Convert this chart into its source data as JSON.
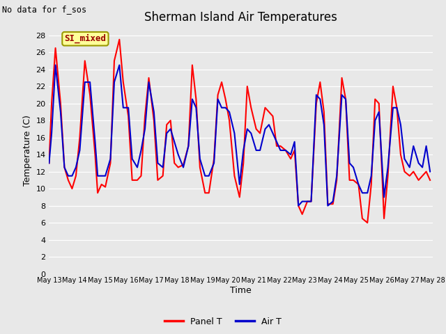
{
  "title": "Sherman Island Air Temperatures",
  "no_data_text": "No data for f_sos",
  "xlabel": "Time",
  "ylabel": "Temperature (C)",
  "ylim": [
    0,
    29
  ],
  "yticks": [
    0,
    2,
    4,
    6,
    8,
    10,
    12,
    14,
    16,
    18,
    20,
    22,
    24,
    26,
    28
  ],
  "background_color": "#e8e8e8",
  "plot_bg_color": "#e8e8e8",
  "legend_label_panel": "Panel T",
  "legend_label_air": "Air T",
  "legend_box_label": "SI_mixed",
  "legend_box_color": "#ffff99",
  "legend_box_border": "#999900",
  "panel_color": "#ff0000",
  "air_color": "#0000cc",
  "line_width": 1.5,
  "x_start_day": 13,
  "x_end_day": 28,
  "xtick_days": [
    13,
    14,
    15,
    16,
    17,
    18,
    19,
    20,
    21,
    22,
    23,
    24,
    25,
    26,
    27,
    28
  ],
  "xtick_labels": [
    "May 13",
    "May 14",
    "May 15",
    "May 16",
    "May 17",
    "May 18",
    "May 19",
    "May 20",
    "May 21",
    "May 22",
    "May 23",
    "May 24",
    "May 25",
    "May 26",
    "May 27",
    "May 28"
  ],
  "panel_T_x": [
    13.0,
    13.1,
    13.25,
    13.45,
    13.6,
    13.75,
    13.9,
    14.05,
    14.2,
    14.4,
    14.6,
    14.8,
    14.9,
    15.05,
    15.2,
    15.4,
    15.55,
    15.75,
    15.9,
    16.1,
    16.25,
    16.45,
    16.6,
    16.75,
    16.9,
    17.1,
    17.25,
    17.45,
    17.6,
    17.75,
    17.9,
    18.05,
    18.25,
    18.45,
    18.6,
    18.75,
    18.9,
    19.1,
    19.25,
    19.45,
    19.6,
    19.75,
    19.9,
    20.05,
    20.25,
    20.45,
    20.6,
    20.75,
    20.9,
    21.1,
    21.25,
    21.45,
    21.6,
    21.75,
    21.9,
    22.05,
    22.25,
    22.45,
    22.6,
    22.75,
    22.9,
    23.1,
    23.25,
    23.45,
    23.6,
    23.75,
    23.9,
    24.1,
    24.25,
    24.45,
    24.6,
    24.75,
    24.9,
    25.1,
    25.25,
    25.45,
    25.6,
    25.75,
    25.9,
    26.1,
    26.25,
    26.45,
    26.6,
    26.75,
    26.9,
    27.1,
    27.25,
    27.45,
    27.6,
    27.75,
    27.9
  ],
  "panel_T_y": [
    13.0,
    20.0,
    26.5,
    20.0,
    12.5,
    11.0,
    10.0,
    11.5,
    16.0,
    25.0,
    21.0,
    14.0,
    9.5,
    10.5,
    10.2,
    13.0,
    25.0,
    27.5,
    22.5,
    18.5,
    11.0,
    11.0,
    11.5,
    18.5,
    23.0,
    18.0,
    11.0,
    11.5,
    17.5,
    18.0,
    13.0,
    12.5,
    12.8,
    15.0,
    24.5,
    20.5,
    12.5,
    9.5,
    9.5,
    13.5,
    21.0,
    22.5,
    20.5,
    18.0,
    11.5,
    9.0,
    13.0,
    22.0,
    19.5,
    17.0,
    16.5,
    19.5,
    19.0,
    18.5,
    15.0,
    15.0,
    14.5,
    13.5,
    14.5,
    8.0,
    7.0,
    8.5,
    8.5,
    20.0,
    22.5,
    19.0,
    8.2,
    8.2,
    11.0,
    23.0,
    20.5,
    11.0,
    11.0,
    10.5,
    6.5,
    6.0,
    10.5,
    20.5,
    20.0,
    6.5,
    11.5,
    22.0,
    19.5,
    14.0,
    12.0,
    11.5,
    12.0,
    11.0,
    11.5,
    12.0,
    11.0
  ],
  "air_T_x": [
    13.0,
    13.1,
    13.25,
    13.45,
    13.6,
    13.75,
    13.9,
    14.05,
    14.2,
    14.4,
    14.6,
    14.8,
    14.9,
    15.05,
    15.2,
    15.4,
    15.55,
    15.75,
    15.9,
    16.1,
    16.25,
    16.45,
    16.6,
    16.75,
    16.9,
    17.1,
    17.25,
    17.45,
    17.6,
    17.75,
    17.9,
    18.05,
    18.25,
    18.45,
    18.6,
    18.75,
    18.9,
    19.1,
    19.25,
    19.45,
    19.6,
    19.75,
    19.9,
    20.05,
    20.25,
    20.45,
    20.6,
    20.75,
    20.9,
    21.1,
    21.25,
    21.45,
    21.6,
    21.75,
    21.9,
    22.05,
    22.25,
    22.45,
    22.6,
    22.75,
    22.9,
    23.1,
    23.25,
    23.45,
    23.6,
    23.75,
    23.9,
    24.1,
    24.25,
    24.45,
    24.6,
    24.75,
    24.9,
    25.1,
    25.25,
    25.45,
    25.6,
    25.75,
    25.9,
    26.1,
    26.25,
    26.45,
    26.6,
    26.75,
    26.9,
    27.1,
    27.25,
    27.45,
    27.6,
    27.75,
    27.9
  ],
  "air_T_y": [
    13.0,
    16.5,
    24.5,
    19.0,
    12.5,
    11.5,
    11.5,
    12.5,
    14.5,
    22.5,
    22.5,
    15.5,
    11.5,
    11.5,
    11.5,
    13.5,
    22.5,
    24.5,
    19.5,
    19.5,
    13.5,
    12.5,
    14.5,
    17.0,
    22.5,
    19.0,
    13.0,
    12.5,
    16.5,
    17.0,
    15.5,
    14.0,
    12.5,
    15.0,
    20.5,
    19.5,
    13.5,
    11.5,
    11.5,
    13.0,
    20.5,
    19.5,
    19.5,
    19.0,
    16.5,
    10.5,
    14.5,
    17.0,
    16.5,
    14.5,
    14.5,
    17.0,
    17.5,
    16.5,
    15.5,
    14.5,
    14.5,
    14.0,
    15.5,
    8.0,
    8.5,
    8.5,
    8.5,
    21.0,
    20.5,
    17.5,
    8.0,
    8.5,
    11.5,
    21.0,
    20.5,
    13.0,
    12.5,
    10.5,
    9.5,
    9.5,
    11.5,
    18.0,
    19.0,
    9.0,
    12.5,
    19.5,
    19.5,
    17.5,
    13.5,
    12.5,
    15.0,
    13.0,
    12.5,
    15.0,
    12.0
  ]
}
